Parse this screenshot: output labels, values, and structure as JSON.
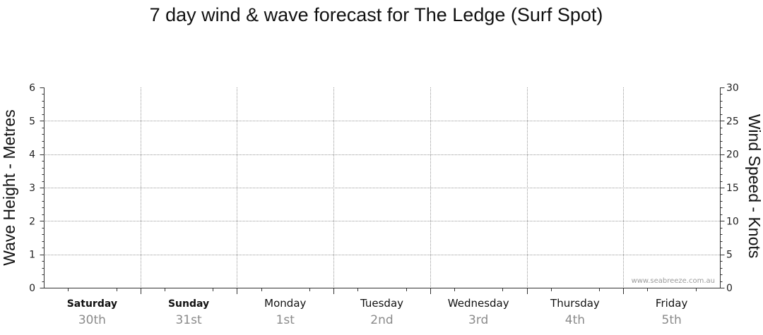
{
  "chart_data": {
    "type": "line",
    "title": "7 day wind & wave forecast for The Ledge (Surf Spot)",
    "ylabel": "Wave Height - Metres",
    "ylim": [
      0,
      6
    ],
    "yticks": [
      0,
      1,
      2,
      3,
      4,
      5,
      6
    ],
    "y2label": "Wind Speed - Knots",
    "y2lim": [
      0,
      30
    ],
    "y2ticks": [
      0,
      5,
      10,
      15,
      20,
      25,
      30
    ],
    "days": [
      {
        "day": "Saturday",
        "date": "30th",
        "bold": true
      },
      {
        "day": "Sunday",
        "date": "31st",
        "bold": true
      },
      {
        "day": "Monday",
        "date": "1st",
        "bold": false
      },
      {
        "day": "Tuesday",
        "date": "2nd",
        "bold": false
      },
      {
        "day": "Wednesday",
        "date": "3rd",
        "bold": false
      },
      {
        "day": "Thursday",
        "date": "4th",
        "bold": false
      },
      {
        "day": "Friday",
        "date": "5th",
        "bold": false
      }
    ],
    "series": [],
    "grid": true,
    "watermark": "www.seabreeze.com.au"
  }
}
